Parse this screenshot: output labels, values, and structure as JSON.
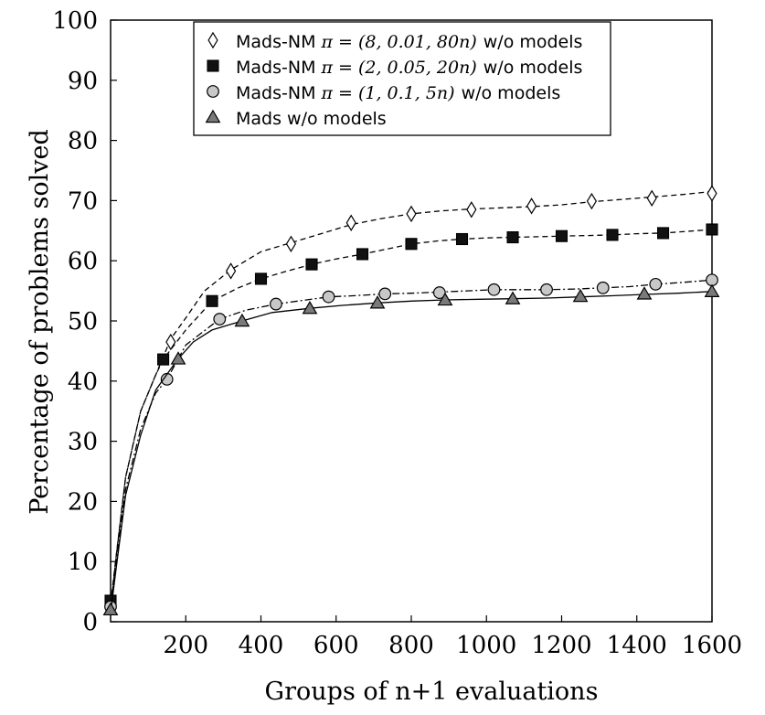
{
  "chart_data": {
    "type": "line",
    "xlabel": "Groups of n+1 evaluations",
    "ylabel": "Percentage of problems solved",
    "xlim": [
      0,
      1600
    ],
    "ylim": [
      0,
      100
    ],
    "xticks": [
      200,
      400,
      600,
      800,
      1000,
      1200,
      1400,
      1600
    ],
    "yticks": [
      0,
      10,
      20,
      30,
      40,
      50,
      60,
      70,
      80,
      90,
      100
    ],
    "grid": false,
    "legend_position": "top",
    "series": [
      {
        "name": "Mads-NM π = (8, 0.01, 80n) w/o models",
        "legend_prefix": "Mads-NM",
        "legend_math": "π = (8, 0.01, 80n)",
        "legend_suffix": "w/o models",
        "marker": "diamond",
        "marker_color": "#ffffff",
        "line_style": "dashed",
        "curve": [
          [
            0,
            2
          ],
          [
            15,
            11
          ],
          [
            40,
            24
          ],
          [
            80,
            35
          ],
          [
            120,
            41
          ],
          [
            160,
            47
          ],
          [
            200,
            50.5
          ],
          [
            250,
            55
          ],
          [
            320,
            58.5
          ],
          [
            400,
            61.5
          ],
          [
            480,
            63
          ],
          [
            560,
            64.5
          ],
          [
            640,
            66
          ],
          [
            720,
            67
          ],
          [
            800,
            67.8
          ],
          [
            880,
            68.3
          ],
          [
            960,
            68.6
          ],
          [
            1040,
            68.8
          ],
          [
            1120,
            69
          ],
          [
            1200,
            69.3
          ],
          [
            1280,
            69.8
          ],
          [
            1360,
            70.2
          ],
          [
            1440,
            70.6
          ],
          [
            1520,
            71
          ],
          [
            1600,
            71.5
          ]
        ],
        "markers": [
          [
            0,
            3
          ],
          [
            160,
            46.5
          ],
          [
            320,
            58.3
          ],
          [
            480,
            62.8
          ],
          [
            640,
            66.3
          ],
          [
            800,
            67.8
          ],
          [
            960,
            68.5
          ],
          [
            1120,
            69.1
          ],
          [
            1280,
            69.9
          ],
          [
            1440,
            70.4
          ],
          [
            1600,
            71.2
          ]
        ]
      },
      {
        "name": "Mads-NM π = (2, 0.05, 20n) w/o models",
        "legend_prefix": "Mads-NM",
        "legend_math": "π = (2, 0.05, 20n)",
        "legend_suffix": "w/o models",
        "marker": "square",
        "marker_color": "#111111",
        "line_style": "dashed",
        "curve": [
          [
            0,
            3
          ],
          [
            15,
            11
          ],
          [
            40,
            24
          ],
          [
            80,
            35
          ],
          [
            120,
            41
          ],
          [
            140,
            43.6
          ],
          [
            200,
            48.5
          ],
          [
            270,
            53.3
          ],
          [
            340,
            55.5
          ],
          [
            400,
            57
          ],
          [
            470,
            58.3
          ],
          [
            535,
            59.4
          ],
          [
            600,
            60.3
          ],
          [
            670,
            61.1
          ],
          [
            740,
            62
          ],
          [
            800,
            62.8
          ],
          [
            870,
            63.3
          ],
          [
            935,
            63.6
          ],
          [
            1000,
            63.8
          ],
          [
            1070,
            63.9
          ],
          [
            1140,
            64
          ],
          [
            1200,
            64.1
          ],
          [
            1270,
            64.2
          ],
          [
            1335,
            64.3
          ],
          [
            1400,
            64.5
          ],
          [
            1470,
            64.6
          ],
          [
            1535,
            64.9
          ],
          [
            1600,
            65.2
          ]
        ],
        "markers": [
          [
            0,
            3.5
          ],
          [
            140,
            43.6
          ],
          [
            270,
            53.3
          ],
          [
            400,
            57
          ],
          [
            535,
            59.4
          ],
          [
            670,
            61.1
          ],
          [
            800,
            62.8
          ],
          [
            935,
            63.6
          ],
          [
            1070,
            63.9
          ],
          [
            1200,
            64.1
          ],
          [
            1335,
            64.3
          ],
          [
            1470,
            64.6
          ],
          [
            1600,
            65.2
          ]
        ]
      },
      {
        "name": "Mads-NM π = (1, 0.1, 5n) w/o models",
        "legend_prefix": "Mads-NM",
        "legend_math": "π = (1, 0.1, 5n)",
        "legend_suffix": "w/o models",
        "marker": "circle",
        "marker_color": "#c8c8c8",
        "line_style": "dashdot",
        "curve": [
          [
            0,
            2
          ],
          [
            15,
            10
          ],
          [
            40,
            22
          ],
          [
            80,
            32
          ],
          [
            120,
            38
          ],
          [
            150,
            40.3
          ],
          [
            200,
            46
          ],
          [
            290,
            50.3
          ],
          [
            360,
            51.8
          ],
          [
            440,
            52.8
          ],
          [
            510,
            53.4
          ],
          [
            580,
            54
          ],
          [
            650,
            54.2
          ],
          [
            730,
            54.5
          ],
          [
            800,
            54.6
          ],
          [
            875,
            54.8
          ],
          [
            950,
            55
          ],
          [
            1020,
            55.2
          ],
          [
            1090,
            55.2
          ],
          [
            1160,
            55.2
          ],
          [
            1240,
            55.3
          ],
          [
            1310,
            55.5
          ],
          [
            1380,
            55.7
          ],
          [
            1450,
            56.1
          ],
          [
            1520,
            56.4
          ],
          [
            1600,
            56.8
          ]
        ],
        "markers": [
          [
            0,
            2.5
          ],
          [
            150,
            40.3
          ],
          [
            290,
            50.3
          ],
          [
            440,
            52.8
          ],
          [
            580,
            54
          ],
          [
            730,
            54.5
          ],
          [
            875,
            54.7
          ],
          [
            1020,
            55.2
          ],
          [
            1160,
            55.2
          ],
          [
            1310,
            55.5
          ],
          [
            1450,
            56.1
          ],
          [
            1600,
            56.8
          ]
        ]
      },
      {
        "name": "Mads w/o models",
        "legend_prefix": "Mads w/o models",
        "legend_math": "",
        "legend_suffix": "",
        "marker": "triangle",
        "marker_color": "#7a7a7a",
        "line_style": "solid",
        "curve": [
          [
            0,
            1.5
          ],
          [
            15,
            9
          ],
          [
            40,
            21
          ],
          [
            80,
            31
          ],
          [
            120,
            38.5
          ],
          [
            160,
            42
          ],
          [
            180,
            43.7
          ],
          [
            220,
            46.5
          ],
          [
            270,
            48.5
          ],
          [
            350,
            50
          ],
          [
            430,
            51.4
          ],
          [
            530,
            52.1
          ],
          [
            620,
            52.6
          ],
          [
            710,
            53
          ],
          [
            800,
            53.3
          ],
          [
            890,
            53.5
          ],
          [
            980,
            53.6
          ],
          [
            1070,
            53.7
          ],
          [
            1160,
            53.8
          ],
          [
            1250,
            54
          ],
          [
            1340,
            54.2
          ],
          [
            1420,
            54.4
          ],
          [
            1510,
            54.6
          ],
          [
            1600,
            54.9
          ]
        ],
        "markers": [
          [
            0,
            2
          ],
          [
            180,
            43.7
          ],
          [
            350,
            50
          ],
          [
            530,
            52.1
          ],
          [
            710,
            53
          ],
          [
            890,
            53.5
          ],
          [
            1070,
            53.7
          ],
          [
            1250,
            54.1
          ],
          [
            1420,
            54.5
          ],
          [
            1600,
            54.9
          ]
        ]
      }
    ]
  }
}
